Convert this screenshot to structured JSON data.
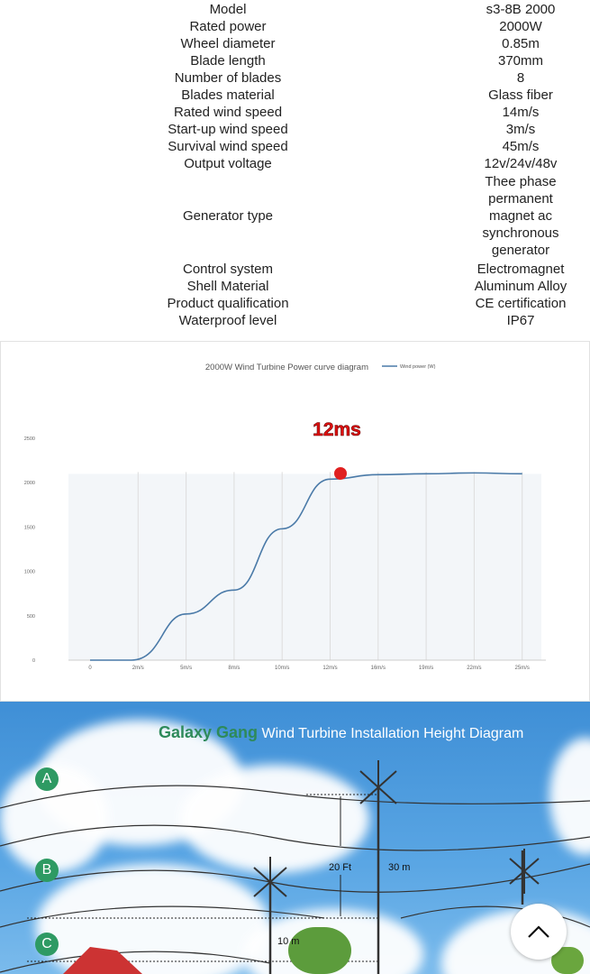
{
  "specs": [
    {
      "label": "Model",
      "value": "s3-8B 2000"
    },
    {
      "label": "Rated power",
      "value": "2000W"
    },
    {
      "label": "Wheel diameter",
      "value": "0.85m"
    },
    {
      "label": "Blade length",
      "value": "370mm"
    },
    {
      "label": "Number of blades",
      "value": "8"
    },
    {
      "label": "Blades material",
      "value": "Glass fiber"
    },
    {
      "label": "Rated wind speed",
      "value": "14m/s"
    },
    {
      "label": "Start-up wind speed",
      "value": "3m/s"
    },
    {
      "label": "Survival wind speed",
      "value": "45m/s"
    },
    {
      "label": "Output voltage",
      "value": "12v/24v/48v"
    },
    {
      "label": "Generator type",
      "value": "Thee phase permanent magnet ac synchronous generator"
    },
    {
      "label": "Control system",
      "value": "Electromagnet"
    },
    {
      "label": "Shell Material",
      "value": "Aluminum Alloy"
    },
    {
      "label": "Product qualification",
      "value": "CE certification"
    },
    {
      "label": "Waterproof level",
      "value": "IP67"
    }
  ],
  "chart_data": {
    "type": "line",
    "title": "2000W Wind Turbine Power curve diagram",
    "annotation": "12ms",
    "categories": [
      "0",
      "2m/s",
      "5m/s",
      "8m/s",
      "10m/s",
      "12m/s",
      "16m/s",
      "19m/s",
      "22m/s",
      "25m/s"
    ],
    "series": [
      {
        "name": "Wind power (W)",
        "values": [
          0,
          0,
          520,
          790,
          1480,
          2040,
          2090,
          2100,
          2110,
          2100
        ],
        "color": "#4a7aa8"
      }
    ],
    "yticks": [
      0,
      500,
      1000,
      1500,
      2000,
      2500
    ],
    "ylim": [
      0,
      2500
    ],
    "grid": "vertical",
    "legend": "top-right"
  },
  "diagram": {
    "brand": "Galaxy Gang",
    "title": "Wind Turbine Installation Height Diagram",
    "zones": [
      "A",
      "B",
      "C"
    ],
    "labels": {
      "h1": "20 Ft",
      "h2": "30 m",
      "h3": "10 m"
    }
  },
  "scroll_top_icon": "chevron-up-icon"
}
